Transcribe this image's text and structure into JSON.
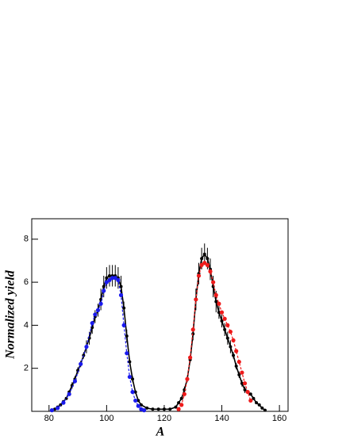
{
  "chart_data": {
    "type": "line",
    "x_label": "A",
    "y_label": "Normalized yield",
    "xlim": [
      74,
      163
    ],
    "ylim": [
      0,
      8.95
    ],
    "xticks": [
      80,
      100,
      120,
      140,
      160
    ],
    "yticks": [
      2,
      4,
      6,
      8
    ],
    "series": [
      {
        "color": "#000000",
        "dash": false,
        "x": [
          81,
          82,
          83,
          84,
          85,
          86,
          87,
          88,
          89,
          90,
          91,
          92,
          93,
          94,
          95,
          96,
          97,
          98,
          99,
          100,
          101,
          102,
          103,
          104,
          105,
          106,
          107,
          108,
          109,
          110,
          111,
          112,
          114,
          116,
          118,
          120,
          122,
          124,
          125,
          126,
          127,
          128,
          129,
          130,
          131,
          132,
          133,
          134,
          135,
          136,
          137,
          138,
          139,
          140,
          141,
          142,
          143,
          144,
          145,
          146,
          147,
          148,
          149,
          150,
          151,
          152,
          153,
          154,
          155
        ],
        "values": [
          0.05,
          0.1,
          0.2,
          0.3,
          0.45,
          0.6,
          0.9,
          1.2,
          1.5,
          1.9,
          2.2,
          2.6,
          3.0,
          3.4,
          3.9,
          4.4,
          4.7,
          5.2,
          5.8,
          6.2,
          6.3,
          6.3,
          6.3,
          6.2,
          5.8,
          4.8,
          3.5,
          2.3,
          1.5,
          0.9,
          0.5,
          0.3,
          0.15,
          0.1,
          0.1,
          0.1,
          0.1,
          0.2,
          0.4,
          0.6,
          1.0,
          1.5,
          2.4,
          3.6,
          5.2,
          6.4,
          7.1,
          7.3,
          7.1,
          6.6,
          5.8,
          5.1,
          4.6,
          4.2,
          3.8,
          3.4,
          3.0,
          2.6,
          2.1,
          1.7,
          1.3,
          1.0,
          0.9,
          0.8,
          0.6,
          0.4,
          0.3,
          0.15,
          0.05
        ],
        "errors": [
          0.05,
          0.05,
          0.05,
          0.05,
          0.05,
          0.05,
          0.05,
          0.15,
          0.15,
          0.15,
          0.15,
          0.15,
          0.3,
          0.3,
          0.3,
          0.3,
          0.3,
          0.5,
          0.5,
          0.5,
          0.5,
          0.5,
          0.5,
          0.5,
          0.5,
          0.3,
          0.3,
          0.15,
          0.15,
          0.05,
          0.05,
          0.05,
          0.05,
          0.05,
          0.05,
          0.05,
          0.05,
          0.05,
          0.05,
          0.05,
          0.15,
          0.15,
          0.15,
          0.3,
          0.5,
          0.5,
          0.5,
          0.5,
          0.5,
          0.5,
          0.5,
          0.5,
          0.3,
          0.3,
          0.3,
          0.3,
          0.3,
          0.15,
          0.15,
          0.15,
          0.15,
          0.15,
          0.05,
          0.05,
          0.05,
          0.05,
          0.05,
          0.05,
          0.05
        ]
      },
      {
        "color": "#1a1aee",
        "dash": true,
        "x": [
          81,
          83,
          85,
          87,
          89,
          91,
          93,
          95,
          96,
          97,
          98,
          99,
          100,
          101,
          102,
          103,
          104,
          105,
          106,
          107,
          108,
          109,
          110,
          111,
          112,
          113
        ],
        "values": [
          0.05,
          0.15,
          0.4,
          0.8,
          1.4,
          2.2,
          3.0,
          4.1,
          4.5,
          4.7,
          5.0,
          5.6,
          6.0,
          6.1,
          6.2,
          6.2,
          6.1,
          5.4,
          4.0,
          2.7,
          1.6,
          0.9,
          0.5,
          0.25,
          0.1,
          0.05
        ]
      },
      {
        "color": "#ee1a1a",
        "dash": true,
        "x": [
          125,
          126,
          127,
          128,
          129,
          130,
          131,
          132,
          133,
          134,
          135,
          136,
          137,
          138,
          139,
          140,
          141,
          142,
          143,
          144,
          145,
          146,
          147,
          148,
          149,
          150
        ],
        "values": [
          0.1,
          0.3,
          0.8,
          1.5,
          2.5,
          3.8,
          5.2,
          6.3,
          6.8,
          6.9,
          6.8,
          6.5,
          6.0,
          5.4,
          5.0,
          4.6,
          4.3,
          4.0,
          3.7,
          3.3,
          2.8,
          2.3,
          1.8,
          1.3,
          0.9,
          0.5
        ]
      }
    ]
  }
}
